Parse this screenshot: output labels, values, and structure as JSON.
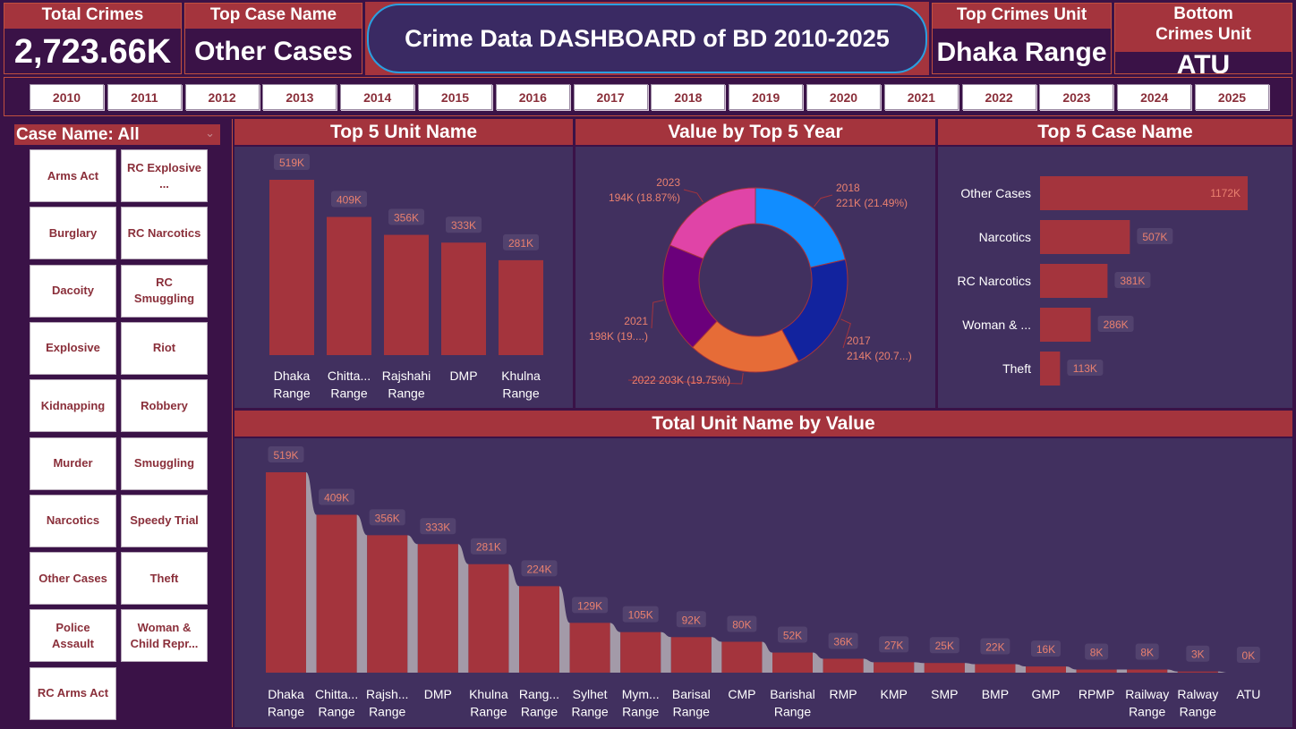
{
  "kpis": {
    "total_crimes": {
      "title": "Total Crimes",
      "value": "2,723.66K"
    },
    "top_case_name": {
      "title": "Top Case Name",
      "value": "Other Cases"
    },
    "dashboard_title": "Crime Data DASHBOARD of BD 2010-2025",
    "top_crimes_unit": {
      "title": "Top Crimes Unit",
      "value": "Dhaka Range"
    },
    "bottom_crimes_unit": {
      "title": "Bottom Crimes Unit",
      "value": "ATU"
    }
  },
  "years": [
    "2010",
    "2011",
    "2012",
    "2013",
    "2014",
    "2015",
    "2016",
    "2017",
    "2018",
    "2019",
    "2020",
    "2021",
    "2022",
    "2023",
    "2024",
    "2025"
  ],
  "slicer": {
    "header": "Case Name: All",
    "items": [
      "Arms Act",
      "RC Explosive ...",
      "Burglary",
      "RC Narcotics",
      "Dacoity",
      "RC Smuggling",
      "Explosive",
      "Riot",
      "Kidnapping",
      "Robbery",
      "Murder",
      "Smuggling",
      "Narcotics",
      "Speedy Trial",
      "Other Cases",
      "Theft",
      "Police Assault",
      "Woman & Child Repr...",
      "RC Arms Act"
    ]
  },
  "panels": {
    "top5_unit_title": "Top 5 Unit Name",
    "top5_year_title": "Value by Top 5 Year",
    "top5_case_title": "Top 5 Case Name",
    "total_unit_title": "Total Unit Name by Value"
  },
  "colors": {
    "bar": "#a4343d",
    "panel": "#41305f",
    "background": "#3a1247",
    "label_bg": "#52426e",
    "label_text": "#e9806f"
  },
  "chart_data": [
    {
      "id": "top5_unit",
      "type": "bar",
      "title": "Top 5 Unit Name",
      "categories": [
        [
          "Dhaka",
          "Range"
        ],
        [
          "Chitta...",
          "Range"
        ],
        [
          "Rajshahi",
          "Range"
        ],
        [
          "DMP"
        ],
        [
          "Khulna",
          "Range"
        ]
      ],
      "values": [
        519,
        409,
        356,
        333,
        281
      ],
      "labels": [
        "519K",
        "409K",
        "356K",
        "333K",
        "281K"
      ],
      "ylim": [
        0,
        519
      ]
    },
    {
      "id": "top5_year",
      "type": "pie",
      "title": "Value by Top 5 Year",
      "slices": [
        {
          "name": "2018",
          "value": 221,
          "label": "221K (21.49%)",
          "color": "#118dff"
        },
        {
          "name": "2017",
          "value": 214,
          "label": "214K (20.7...)",
          "color": "#12239e"
        },
        {
          "name": "2022",
          "value": 203,
          "label": "203K (19.75%)",
          "color": "#e66c37"
        },
        {
          "name": "2021",
          "value": 198,
          "label": "198K (19....)",
          "color": "#6b007b"
        },
        {
          "name": "2023",
          "value": 194,
          "label": "194K (18.87%)",
          "color": "#e044a7"
        }
      ]
    },
    {
      "id": "top5_case",
      "type": "bar",
      "orientation": "horizontal",
      "title": "Top 5 Case Name",
      "categories": [
        "Other Cases",
        "Narcotics",
        "RC Narcotics",
        "Woman & ...",
        "Theft"
      ],
      "values": [
        1172,
        507,
        381,
        286,
        113
      ],
      "labels": [
        "1172K",
        "507K",
        "381K",
        "286K",
        "113K"
      ]
    },
    {
      "id": "total_unit",
      "type": "bar",
      "title": "Total Unit Name by Value",
      "categories": [
        [
          "Dhaka",
          "Range"
        ],
        [
          "Chitta...",
          "Range"
        ],
        [
          "Rajsh...",
          "Range"
        ],
        [
          "DMP"
        ],
        [
          "Khulna",
          "Range"
        ],
        [
          "Rang...",
          "Range"
        ],
        [
          "Sylhet",
          "Range"
        ],
        [
          "Mym...",
          "Range"
        ],
        [
          "Barisal",
          "Range"
        ],
        [
          "CMP"
        ],
        [
          "Barishal",
          "Range"
        ],
        [
          "RMP"
        ],
        [
          "KMP"
        ],
        [
          "SMP"
        ],
        [
          "BMP"
        ],
        [
          "GMP"
        ],
        [
          "RPMP"
        ],
        [
          "Railway",
          "Range"
        ],
        [
          "Ralway",
          "Range"
        ],
        [
          "ATU"
        ]
      ],
      "values": [
        519,
        409,
        356,
        333,
        281,
        224,
        129,
        105,
        92,
        80,
        52,
        36,
        27,
        25,
        22,
        16,
        8,
        8,
        3,
        0
      ],
      "labels": [
        "519K",
        "409K",
        "356K",
        "333K",
        "281K",
        "224K",
        "129K",
        "105K",
        "92K",
        "80K",
        "52K",
        "36K",
        "27K",
        "25K",
        "22K",
        "16K",
        "8K",
        "8K",
        "3K",
        "0K"
      ],
      "ylim": [
        0,
        519
      ]
    }
  ]
}
